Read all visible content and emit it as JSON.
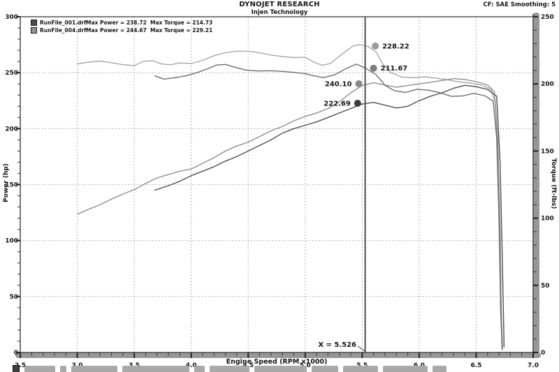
{
  "header": {
    "title": "DYNOJET RESEARCH",
    "subtitle": "Injen Technology",
    "correction_info": "CF: SAE  Smoothing: 5"
  },
  "legend": [
    {
      "file": "RunFile_001.drf",
      "max_power_label": "Max Power = 238.72",
      "max_torque_label": "Max Torque = 214.73",
      "color": "#4a4a4a"
    },
    {
      "file": "RunFile_004.drf",
      "max_power_label": "Max Power = 244.67",
      "max_torque_label": "Max Torque = 229.21",
      "color": "#909090"
    }
  ],
  "cursor": {
    "rpm": 5.526,
    "label": "X = 5.526"
  },
  "annotations": [
    {
      "text": "228.22",
      "rpm": 5.615,
      "axis": "torque",
      "value": 228.22,
      "side": "right",
      "color": "#9a9a9a"
    },
    {
      "text": "211.67",
      "rpm": 5.6,
      "axis": "torque",
      "value": 211.67,
      "side": "right",
      "color": "#7d7d7d"
    },
    {
      "text": "240.10",
      "rpm": 5.47,
      "axis": "power",
      "value": 240.1,
      "side": "left",
      "color": "#8a8a8a"
    },
    {
      "text": "222.69",
      "rpm": 5.46,
      "axis": "power",
      "value": 222.69,
      "side": "left",
      "color": "#3c3c3c"
    }
  ],
  "chart_data": {
    "type": "line",
    "title": "DYNOJET RESEARCH - Injen Technology",
    "xlabel": "Engine Speed (RPM x1000)",
    "ylabel_left": "Power (hp)",
    "ylabel_right": "Torque (ft-lbs)",
    "x_range": [
      2.5,
      7.0
    ],
    "x_major_ticks": [
      "2.5",
      "3.0",
      "3.5",
      "4.0",
      "4.5",
      "5.0",
      "5.5",
      "6.0",
      "6.5",
      "7.0"
    ],
    "x_minor_step": 0.1,
    "power_axis": {
      "range": [
        0,
        300
      ],
      "ticks": [
        "0",
        "50",
        "100",
        "150",
        "200",
        "250",
        "300"
      ],
      "minor_step": 10
    },
    "torque_axis": {
      "range": [
        0,
        250
      ],
      "ticks": [
        "0",
        "50",
        "100",
        "150",
        "200",
        "250"
      ],
      "minor_step": 10
    },
    "grid": {
      "x_lines": [
        3.0,
        3.5,
        4.0,
        4.5,
        5.0,
        5.5,
        6.0,
        6.5
      ],
      "power_lines": [
        50,
        100,
        150,
        200,
        250
      ]
    },
    "legend_position": "top-left",
    "series": [
      {
        "name": "torque_004",
        "run": "RunFile_004.drf",
        "axis": "torque",
        "color": "#a6a6a6",
        "points": [
          [
            3.0,
            214.8
          ],
          [
            3.1,
            216.2
          ],
          [
            3.2,
            217.0
          ],
          [
            3.3,
            215.8
          ],
          [
            3.4,
            214.3
          ],
          [
            3.5,
            213.6
          ],
          [
            3.58,
            216.8
          ],
          [
            3.66,
            217.3
          ],
          [
            3.74,
            214.8
          ],
          [
            3.82,
            214.3
          ],
          [
            3.9,
            215.6
          ],
          [
            4.0,
            215.2
          ],
          [
            4.1,
            217.5
          ],
          [
            4.2,
            221.0
          ],
          [
            4.3,
            223.2
          ],
          [
            4.4,
            224.4
          ],
          [
            4.5,
            224.3
          ],
          [
            4.6,
            223.2
          ],
          [
            4.7,
            221.5
          ],
          [
            4.8,
            220.3
          ],
          [
            4.9,
            219.6
          ],
          [
            5.0,
            219.8
          ],
          [
            5.08,
            216.0
          ],
          [
            5.15,
            213.8
          ],
          [
            5.22,
            215.2
          ],
          [
            5.32,
            222.0
          ],
          [
            5.42,
            228.3
          ],
          [
            5.48,
            229.2
          ],
          [
            5.55,
            228.0
          ],
          [
            5.62,
            224.0
          ],
          [
            5.68,
            215.0
          ],
          [
            5.75,
            208.5
          ],
          [
            5.85,
            205.0
          ],
          [
            5.95,
            204.6
          ],
          [
            6.05,
            205.3
          ],
          [
            6.15,
            204.2
          ],
          [
            6.25,
            203.0
          ],
          [
            6.35,
            201.5
          ],
          [
            6.45,
            200.6
          ],
          [
            6.55,
            199.0
          ],
          [
            6.63,
            196.0
          ],
          [
            6.67,
            185.0
          ],
          [
            6.7,
            120.0
          ],
          [
            6.715,
            50.0
          ],
          [
            6.725,
            3.0
          ]
        ]
      },
      {
        "name": "power_004",
        "run": "RunFile_004.drf",
        "axis": "power",
        "color": "#8e8e8e",
        "points": [
          [
            3.0,
            123.5
          ],
          [
            3.1,
            128
          ],
          [
            3.2,
            132
          ],
          [
            3.3,
            137
          ],
          [
            3.4,
            141.5
          ],
          [
            3.5,
            145.5
          ],
          [
            3.6,
            151
          ],
          [
            3.7,
            156
          ],
          [
            3.8,
            159
          ],
          [
            3.9,
            162
          ],
          [
            4.0,
            164
          ],
          [
            4.1,
            169
          ],
          [
            4.2,
            174
          ],
          [
            4.3,
            180
          ],
          [
            4.4,
            184.5
          ],
          [
            4.5,
            188
          ],
          [
            4.6,
            193
          ],
          [
            4.7,
            198
          ],
          [
            4.8,
            202
          ],
          [
            4.9,
            207
          ],
          [
            5.0,
            211
          ],
          [
            5.1,
            214
          ],
          [
            5.2,
            218
          ],
          [
            5.3,
            224
          ],
          [
            5.4,
            232
          ],
          [
            5.5,
            238.5
          ],
          [
            5.6,
            241
          ],
          [
            5.7,
            239
          ],
          [
            5.8,
            237
          ],
          [
            5.9,
            238.5
          ],
          [
            6.0,
            240
          ],
          [
            6.1,
            241.5
          ],
          [
            6.2,
            243
          ],
          [
            6.3,
            244.7
          ],
          [
            6.4,
            244
          ],
          [
            6.5,
            242
          ],
          [
            6.6,
            239
          ],
          [
            6.66,
            233
          ],
          [
            6.69,
            190
          ],
          [
            6.71,
            110
          ],
          [
            6.72,
            40
          ],
          [
            6.73,
            3
          ]
        ]
      },
      {
        "name": "torque_001",
        "run": "RunFile_001.drf",
        "axis": "torque",
        "color": "#6e6e6e",
        "points": [
          [
            3.68,
            206
          ],
          [
            3.76,
            203.6
          ],
          [
            3.85,
            204.5
          ],
          [
            3.95,
            206
          ],
          [
            4.05,
            208.3
          ],
          [
            4.15,
            211.5
          ],
          [
            4.22,
            214
          ],
          [
            4.3,
            214.5
          ],
          [
            4.38,
            212.5
          ],
          [
            4.48,
            210.3
          ],
          [
            4.58,
            209.6
          ],
          [
            4.7,
            209.8
          ],
          [
            4.8,
            209.3
          ],
          [
            4.9,
            208.6
          ],
          [
            5.0,
            207.6
          ],
          [
            5.08,
            206
          ],
          [
            5.16,
            204.6
          ],
          [
            5.26,
            206.8
          ],
          [
            5.36,
            211.5
          ],
          [
            5.45,
            214.7
          ],
          [
            5.53,
            211.7
          ],
          [
            5.62,
            207
          ],
          [
            5.7,
            199
          ],
          [
            5.78,
            195
          ],
          [
            5.88,
            193.6
          ],
          [
            5.98,
            196
          ],
          [
            6.08,
            195.4
          ],
          [
            6.18,
            193.5
          ],
          [
            6.28,
            190.8
          ],
          [
            6.38,
            191
          ],
          [
            6.48,
            193
          ],
          [
            6.58,
            191
          ],
          [
            6.65,
            187
          ],
          [
            6.68,
            160
          ],
          [
            6.7,
            100
          ],
          [
            6.715,
            30
          ],
          [
            6.73,
            2
          ]
        ]
      },
      {
        "name": "power_001",
        "run": "RunFile_001.drf",
        "axis": "power",
        "color": "#4f4f4f",
        "points": [
          [
            3.68,
            145
          ],
          [
            3.8,
            149
          ],
          [
            3.9,
            153
          ],
          [
            4.0,
            158
          ],
          [
            4.1,
            162
          ],
          [
            4.2,
            166
          ],
          [
            4.3,
            171
          ],
          [
            4.4,
            175
          ],
          [
            4.5,
            180
          ],
          [
            4.6,
            185
          ],
          [
            4.7,
            190
          ],
          [
            4.8,
            196
          ],
          [
            4.9,
            200
          ],
          [
            5.0,
            203
          ],
          [
            5.1,
            206
          ],
          [
            5.2,
            210
          ],
          [
            5.3,
            214
          ],
          [
            5.4,
            218
          ],
          [
            5.5,
            222
          ],
          [
            5.6,
            223.5
          ],
          [
            5.7,
            221
          ],
          [
            5.8,
            218.5
          ],
          [
            5.9,
            220
          ],
          [
            6.0,
            225
          ],
          [
            6.1,
            229
          ],
          [
            6.2,
            232
          ],
          [
            6.3,
            236
          ],
          [
            6.4,
            238.7
          ],
          [
            6.5,
            237.5
          ],
          [
            6.6,
            235
          ],
          [
            6.68,
            229
          ],
          [
            6.71,
            170
          ],
          [
            6.73,
            80
          ],
          [
            6.745,
            5
          ]
        ]
      }
    ]
  }
}
